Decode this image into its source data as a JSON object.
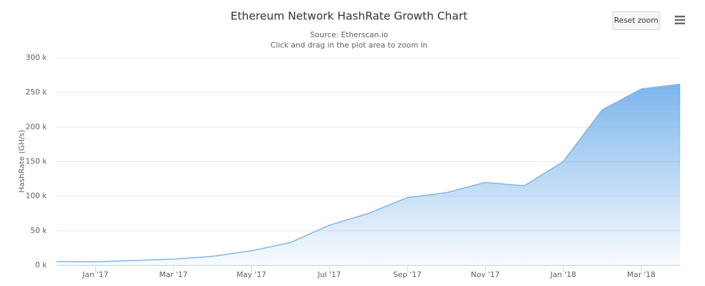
{
  "chart_data": {
    "type": "area",
    "title": "Ethereum Network HashRate Growth Chart",
    "subtitle": "Source: Etherscan.io",
    "instruction": "Click and drag in the plot area to zoom in",
    "reset_zoom": "Reset zoom",
    "y_label": "HashRate (GH/s)",
    "x": [
      "2016-12",
      "2017-01",
      "2017-02",
      "2017-03",
      "2017-04",
      "2017-05",
      "2017-06",
      "2017-07",
      "2017-08",
      "2017-09",
      "2017-10",
      "2017-11",
      "2017-12",
      "2018-01",
      "2018-02",
      "2018-03",
      "2018-04"
    ],
    "series": [
      {
        "name": "HashRate",
        "color": "#7cb5ec",
        "values": [
          5500,
          5000,
          7000,
          9000,
          13000,
          21000,
          33000,
          58000,
          75000,
          98000,
          105000,
          120000,
          115000,
          150000,
          225000,
          255000,
          262000
        ]
      }
    ],
    "xlim": [
      "2016-12",
      "2018-04"
    ],
    "xticks": [
      {
        "value": "2017-01",
        "label": "Jan '17"
      },
      {
        "value": "2017-03",
        "label": "Mar '17"
      },
      {
        "value": "2017-05",
        "label": "May '17"
      },
      {
        "value": "2017-07",
        "label": "Jul '17"
      },
      {
        "value": "2017-09",
        "label": "Sep '17"
      },
      {
        "value": "2017-11",
        "label": "Nov '17"
      },
      {
        "value": "2018-01",
        "label": "Jan '18"
      },
      {
        "value": "2018-03",
        "label": "Mar '18"
      }
    ],
    "ylim": [
      0,
      300000
    ],
    "yticks": [
      {
        "value": 0,
        "label": "0 k"
      },
      {
        "value": 50000,
        "label": "50 k"
      },
      {
        "value": 100000,
        "label": "100 k"
      },
      {
        "value": 150000,
        "label": "150 k"
      },
      {
        "value": 200000,
        "label": "200 k"
      },
      {
        "value": 250000,
        "label": "250 k"
      },
      {
        "value": 300000,
        "label": "300 k"
      }
    ],
    "grid": true
  }
}
